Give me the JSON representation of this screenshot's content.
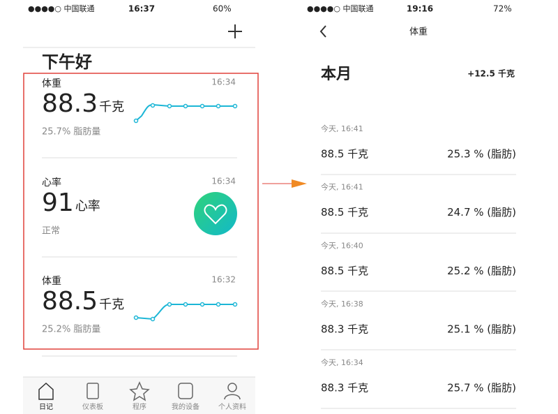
{
  "left_screen": {
    "status_bar": {
      "carrier": "●●●●○ 中国联通",
      "time": "16:37",
      "battery": "60%"
    },
    "greeting": "下午好",
    "cards": [
      {
        "title": "体重",
        "time": "16:34",
        "value": "88.3",
        "unit": "千克",
        "detail": "25.7% 脂肪量"
      },
      {
        "title": "心率",
        "time": "16:34",
        "value": "91",
        "unit": "心率",
        "detail": "正常"
      },
      {
        "title": "体重",
        "time": "16:32",
        "value": "88.5",
        "unit": "千克",
        "detail": "25.2% 脂肪量"
      }
    ],
    "tabs": [
      "日记",
      "仪表板",
      "程序",
      "我的设备",
      "个人资料"
    ]
  },
  "right_screen": {
    "status_bar": {
      "carrier": "●●●●○ 中国联通",
      "time": "19:16",
      "battery": "72%"
    },
    "title": "体重",
    "period": "本月",
    "change": "+12.5 千克",
    "entries": [
      {
        "date": "今天, 16:41",
        "weight": "88.5 千克",
        "fat": "25.3 % (脂肪)"
      },
      {
        "date": "今天, 16:41",
        "weight": "88.5 千克",
        "fat": "24.7 % (脂肪)"
      },
      {
        "date": "今天, 16:40",
        "weight": "88.5 千克",
        "fat": "25.2 % (脂肪)"
      },
      {
        "date": "今天, 16:38",
        "weight": "88.3 千克",
        "fat": "25.1 % (脂肪)"
      },
      {
        "date": "今天, 16:34",
        "weight": "88.3 千克",
        "fat": "25.7 % (脂肪)"
      }
    ]
  }
}
